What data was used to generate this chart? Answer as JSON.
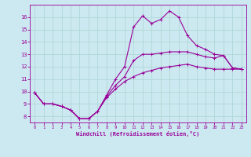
{
  "xlabel": "Windchill (Refroidissement éolien,°C)",
  "background_color": "#cce8f0",
  "grid_color": "#b0d8d8",
  "line_color": "#990099",
  "x_hours": [
    0,
    1,
    2,
    3,
    4,
    5,
    6,
    7,
    8,
    9,
    10,
    11,
    12,
    13,
    14,
    15,
    16,
    17,
    18,
    19,
    20,
    21,
    22,
    23
  ],
  "line_main": [
    9.9,
    9.0,
    9.0,
    8.8,
    8.5,
    7.8,
    7.8,
    8.4,
    9.7,
    11.0,
    12.0,
    15.2,
    16.1,
    15.5,
    15.8,
    16.5,
    16.0,
    14.5,
    13.7,
    13.4,
    13.0,
    12.9,
    11.9,
    11.8
  ],
  "line_low": [
    9.9,
    9.0,
    9.0,
    8.8,
    8.5,
    7.8,
    7.8,
    8.4,
    9.5,
    10.2,
    10.8,
    11.2,
    11.5,
    11.7,
    11.9,
    12.0,
    12.1,
    12.2,
    12.0,
    11.9,
    11.8,
    11.8,
    11.8,
    11.8
  ],
  "line_mid": [
    9.9,
    9.0,
    9.0,
    8.8,
    8.5,
    7.8,
    7.8,
    8.4,
    9.6,
    10.5,
    11.2,
    12.5,
    13.0,
    13.0,
    13.1,
    13.2,
    13.2,
    13.2,
    13.0,
    12.8,
    12.7,
    12.9,
    11.9,
    11.8
  ],
  "ylim": [
    7.5,
    17.0
  ],
  "xlim": [
    -0.5,
    23.5
  ],
  "yticks": [
    8,
    9,
    10,
    11,
    12,
    13,
    14,
    15,
    16
  ],
  "xticks": [
    0,
    1,
    2,
    3,
    4,
    5,
    6,
    7,
    8,
    9,
    10,
    11,
    12,
    13,
    14,
    15,
    16,
    17,
    18,
    19,
    20,
    21,
    22,
    23
  ]
}
